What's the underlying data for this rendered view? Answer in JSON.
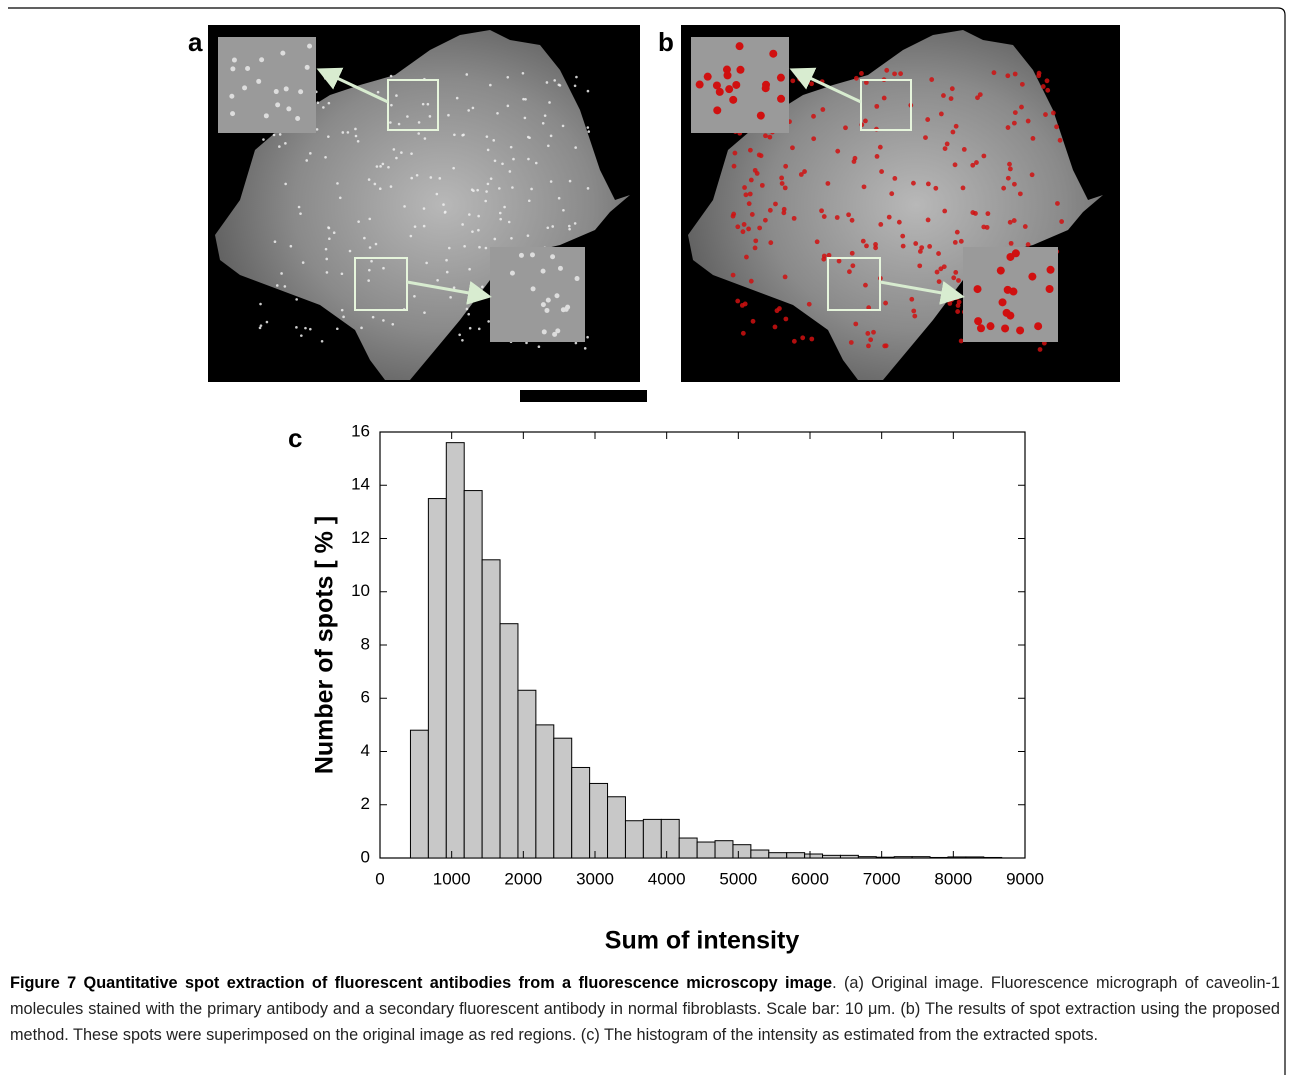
{
  "panels": {
    "a": "a",
    "b": "b",
    "c": "c"
  },
  "chart_data": {
    "type": "histogram",
    "xlabel": "Sum of intensity",
    "ylabel": "Number of spots [ % ]",
    "bins": [
      425,
      675,
      925,
      1175,
      1425,
      1675,
      1925,
      2175,
      2425,
      2675,
      2925,
      3175,
      3425,
      3675,
      3925,
      4175,
      4425,
      4675,
      4925,
      5175,
      5425,
      5675,
      5925,
      6175,
      6425,
      6675,
      6925,
      7175,
      7425,
      7675,
      7925,
      8175,
      8425,
      8675
    ],
    "values": [
      4.8,
      13.5,
      15.6,
      13.8,
      11.2,
      8.8,
      6.3,
      5.0,
      4.5,
      3.4,
      2.8,
      2.3,
      1.4,
      1.45,
      1.45,
      0.75,
      0.6,
      0.65,
      0.5,
      0.3,
      0.2,
      0.2,
      0.15,
      0.1,
      0.1,
      0.05,
      0.03,
      0.05,
      0.05,
      0.02,
      0.04,
      0.04,
      0.02
    ],
    "color": "#c8c8c8",
    "xlim": [
      0,
      9000
    ],
    "xticks": [
      0,
      1000,
      2000,
      3000,
      4000,
      5000,
      6000,
      7000,
      8000,
      9000
    ],
    "ylim": [
      0,
      16
    ],
    "yticks": [
      0,
      2,
      4,
      6,
      8,
      10,
      12,
      14,
      16
    ],
    "grid": false
  },
  "caption": {
    "title": "Figure 7 Quantitative spot extraction of fluorescent antibodies from a fluorescence microscopy image",
    "text": ". (a) Original image. Fluorescence micrograph of caveolin-1 molecules stained with the primary antibody and a secondary fluorescent antibody in normal fibroblasts. Scale bar: 10 μm. (b) The results of spot extraction using the proposed method. These spots were superimposed on the original image as red regions. (c) The histogram of the intensity as estimated from the extracted spots."
  }
}
